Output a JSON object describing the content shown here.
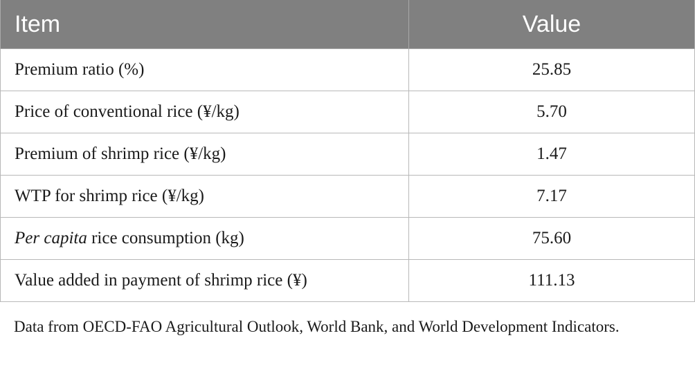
{
  "table": {
    "headers": {
      "item": "Item",
      "value": "Value"
    },
    "rows": [
      {
        "item": "Premium ratio (%)",
        "value": "25.85"
      },
      {
        "item": "Price of conventional rice (¥/kg)",
        "value": "5.70"
      },
      {
        "item": "Premium of shrimp rice (¥/kg)",
        "value": "1.47"
      },
      {
        "item": "WTP for shrimp rice (¥/kg)",
        "value": "7.17"
      },
      {
        "item_emphasis": "Per capita",
        "item_rest": " rice consumption (kg)",
        "value": "75.60"
      },
      {
        "item": "Value added in payment of shrimp rice (¥)",
        "value": "111.13"
      }
    ]
  },
  "footnote": "Data from OECD-FAO Agricultural Outlook, World Bank, and World Development Indicators.",
  "colors": {
    "header_bg": "#808080",
    "header_text": "#ffffff",
    "grid_line": "#b8b8b8"
  }
}
